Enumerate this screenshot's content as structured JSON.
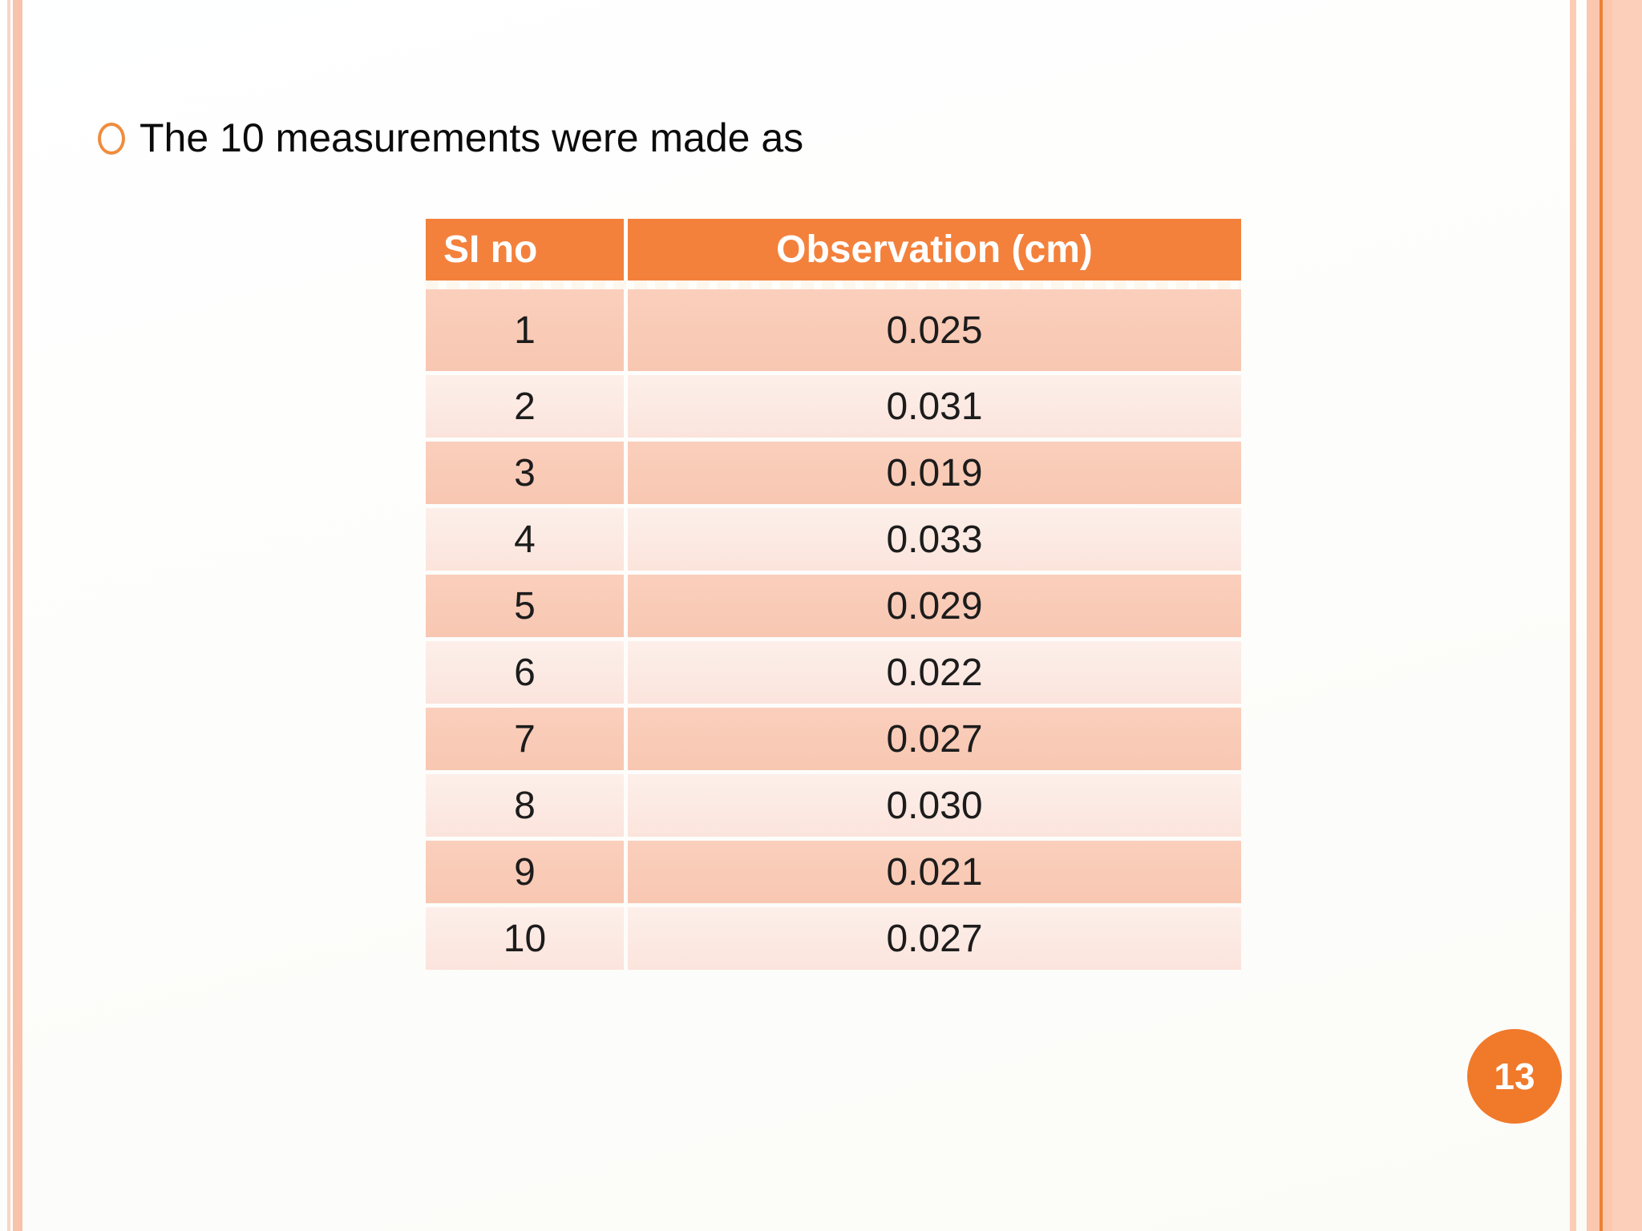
{
  "slide": {
    "title": "The 10 measurements were made as",
    "page_number": "13"
  },
  "table": {
    "headers": [
      "SI no",
      "Observation (cm)"
    ],
    "rows": [
      {
        "sl": "1",
        "obs": "0.025"
      },
      {
        "sl": "2",
        "obs": "0.031"
      },
      {
        "sl": "3",
        "obs": "0.019"
      },
      {
        "sl": "4",
        "obs": "0.033"
      },
      {
        "sl": "5",
        "obs": "0.029"
      },
      {
        "sl": "6",
        "obs": "0.022"
      },
      {
        "sl": "7",
        "obs": "0.027"
      },
      {
        "sl": "8",
        "obs": "0.030"
      },
      {
        "sl": "9",
        "obs": "0.021"
      },
      {
        "sl": "10",
        "obs": "0.027"
      }
    ]
  },
  "colors": {
    "header-bg": "#f3813c",
    "header-fg": "#ffffff",
    "row-dark": "#facfbc",
    "row-light": "#fdefea",
    "badge": "#f0792a",
    "bullet": "#ef8c3f",
    "stripe-light": "#fad3c2",
    "stripe-mid": "#f8c2ab",
    "stripe-light2": "#fbcdb5",
    "stripe-band": "#fbc7ae",
    "stripe-dark": "#ed8133",
    "stripe-soft": "#fccfba"
  }
}
